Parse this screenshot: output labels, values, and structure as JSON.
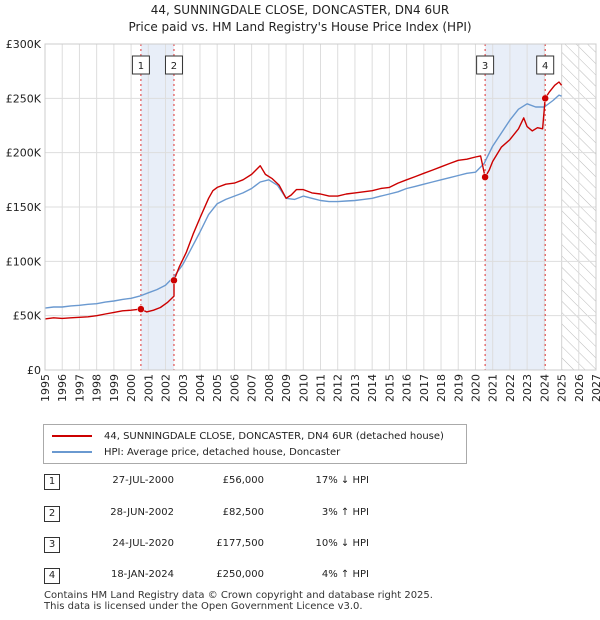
{
  "chart_data": {
    "type": "line",
    "title": "44, SUNNINGDALE CLOSE, DONCASTER, DN4 6UR",
    "subtitle": "Price paid vs. HM Land Registry's House Price Index (HPI)",
    "xlabel": "",
    "ylabel": "",
    "xlim": [
      1995,
      2027
    ],
    "ylim": [
      0,
      300000
    ],
    "x_ticks": [
      "1995",
      "1996",
      "1997",
      "1998",
      "1999",
      "2000",
      "2001",
      "2002",
      "2003",
      "2004",
      "2005",
      "2006",
      "2007",
      "2008",
      "2009",
      "2010",
      "2011",
      "2012",
      "2013",
      "2014",
      "2015",
      "2016",
      "2017",
      "2018",
      "2019",
      "2020",
      "2021",
      "2022",
      "2023",
      "2024",
      "2025",
      "2026",
      "2027"
    ],
    "y_ticks": [
      {
        "value": 0,
        "label": "£0"
      },
      {
        "value": 50000,
        "label": "£50K"
      },
      {
        "value": 100000,
        "label": "£100K"
      },
      {
        "value": 150000,
        "label": "£150K"
      },
      {
        "value": 200000,
        "label": "£200K"
      },
      {
        "value": 250000,
        "label": "£250K"
      },
      {
        "value": 300000,
        "label": "£300K"
      }
    ],
    "grid": true,
    "future_start": 2025.0,
    "series": [
      {
        "name": "44, SUNNINGDALE CLOSE, DONCASTER, DN4 6UR (detached house)",
        "color": "#cc0000",
        "x": [
          1995.0,
          1995.5,
          1996.0,
          1996.5,
          1997.0,
          1997.5,
          1998.0,
          1998.5,
          1999.0,
          1999.5,
          2000.0,
          2000.57,
          2000.9,
          2001.3,
          2001.7,
          2002.1,
          2002.49,
          2002.49,
          2002.8,
          2003.2,
          2003.6,
          2004.0,
          2004.5,
          2004.75,
          2005.0,
          2005.5,
          2006.0,
          2006.5,
          2007.0,
          2007.5,
          2007.8,
          2008.2,
          2008.6,
          2009.0,
          2009.3,
          2009.6,
          2010.0,
          2010.5,
          2011.0,
          2011.5,
          2012.0,
          2012.5,
          2013.0,
          2013.5,
          2014.0,
          2014.5,
          2015.0,
          2015.5,
          2016.0,
          2016.5,
          2017.0,
          2017.5,
          2018.0,
          2018.5,
          2019.0,
          2019.5,
          2020.0,
          2020.3,
          2020.56,
          2020.56,
          2020.8,
          2021.0,
          2021.5,
          2022.0,
          2022.5,
          2022.8,
          2023.0,
          2023.3,
          2023.6,
          2023.9,
          2024.05,
          2024.05,
          2024.3,
          2024.6,
          2024.85,
          2025.0
        ],
        "values": [
          47000,
          48000,
          47500,
          48000,
          48500,
          49000,
          50000,
          51500,
          53000,
          54500,
          55000,
          56000,
          53500,
          55000,
          57500,
          62000,
          68000,
          82500,
          95000,
          108000,
          125000,
          140000,
          158000,
          165000,
          168000,
          171000,
          172000,
          175000,
          180000,
          188000,
          180000,
          176000,
          170000,
          158000,
          161000,
          166000,
          166000,
          163000,
          162000,
          160000,
          160000,
          162000,
          163000,
          164000,
          165000,
          167000,
          168000,
          172000,
          175000,
          178000,
          181000,
          184000,
          187000,
          190000,
          193000,
          194000,
          196000,
          197000,
          177500,
          177500,
          184000,
          192000,
          205000,
          212000,
          222000,
          232000,
          224000,
          220000,
          223000,
          222000,
          250000,
          250000,
          256000,
          262000,
          265000,
          262000
        ]
      },
      {
        "name": "HPI: Average price, detached house, Doncaster",
        "color": "#6a99d0",
        "x": [
          1995.0,
          1995.5,
          1996.0,
          1996.5,
          1997.0,
          1997.5,
          1998.0,
          1998.5,
          1999.0,
          1999.5,
          2000.0,
          2000.5,
          2001.0,
          2001.5,
          2002.0,
          2002.5,
          2003.0,
          2003.5,
          2004.0,
          2004.5,
          2005.0,
          2005.5,
          2006.0,
          2006.5,
          2007.0,
          2007.5,
          2008.0,
          2008.5,
          2009.0,
          2009.5,
          2010.0,
          2010.5,
          2011.0,
          2011.5,
          2012.0,
          2012.5,
          2013.0,
          2013.5,
          2014.0,
          2014.5,
          2015.0,
          2015.5,
          2016.0,
          2016.5,
          2017.0,
          2017.5,
          2018.0,
          2018.5,
          2019.0,
          2019.5,
          2020.0,
          2020.5,
          2021.0,
          2021.5,
          2022.0,
          2022.5,
          2023.0,
          2023.5,
          2024.0,
          2024.5,
          2024.85,
          2025.0
        ],
        "values": [
          57000,
          58000,
          58000,
          59000,
          59500,
          60500,
          61000,
          62500,
          63500,
          65000,
          66000,
          68000,
          71000,
          74000,
          78000,
          86000,
          97000,
          112000,
          127000,
          143000,
          153000,
          157000,
          160000,
          163000,
          167000,
          173000,
          175000,
          170000,
          158000,
          157000,
          160000,
          158000,
          156000,
          155000,
          155000,
          155500,
          156000,
          157000,
          158000,
          160000,
          162000,
          164000,
          167000,
          169000,
          171000,
          173000,
          175000,
          177000,
          179000,
          181000,
          182000,
          190000,
          206000,
          218000,
          230000,
          240000,
          245000,
          242000,
          242000,
          248000,
          253000,
          252000
        ]
      }
    ],
    "markers": [
      {
        "label": "1",
        "x": 2000.57,
        "value": 56000
      },
      {
        "label": "2",
        "x": 2002.49,
        "value": 82500
      },
      {
        "label": "3",
        "x": 2020.56,
        "value": 177500
      },
      {
        "label": "4",
        "x": 2024.05,
        "value": 250000
      }
    ],
    "shaded_ranges": [
      [
        2000.57,
        2002.49
      ],
      [
        2020.56,
        2024.05
      ]
    ]
  },
  "legend": {
    "property_label": "44, SUNNINGDALE CLOSE, DONCASTER, DN4 6UR (detached house)",
    "hpi_label": "HPI: Average price, detached house, Doncaster"
  },
  "sales": [
    {
      "num": "1",
      "date": "27-JUL-2000",
      "price": "£56,000",
      "hpi": "17% ↓ HPI"
    },
    {
      "num": "2",
      "date": "28-JUN-2002",
      "price": "£82,500",
      "hpi": "3% ↑ HPI"
    },
    {
      "num": "3",
      "date": "24-JUL-2020",
      "price": "£177,500",
      "hpi": "10% ↓ HPI"
    },
    {
      "num": "4",
      "date": "18-JAN-2024",
      "price": "£250,000",
      "hpi": "4% ↑ HPI"
    }
  ],
  "footer": {
    "line1": "Contains HM Land Registry data © Crown copyright and database right 2025.",
    "line2": "This data is licensed under the Open Government Licence v3.0."
  },
  "colors": {
    "property": "#cc0000",
    "hpi": "#6a99d0",
    "grid": "#dddddd",
    "shade": "#e8eef8",
    "marker_line": "#dd3333"
  }
}
